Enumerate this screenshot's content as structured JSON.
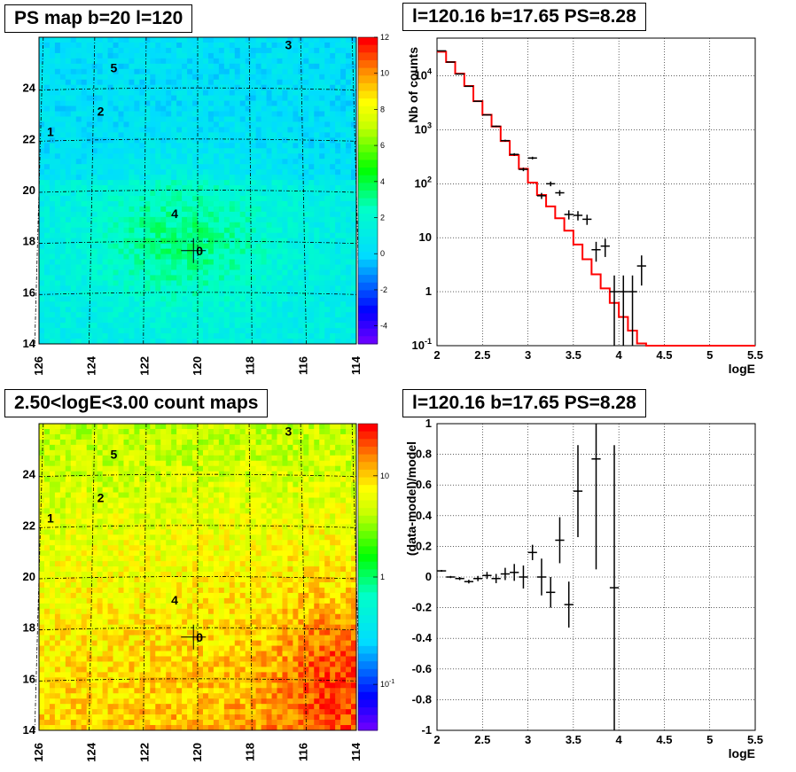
{
  "panels": {
    "ps_map": {
      "title": "PS map b=20 l=120",
      "x_ticks": [
        "126",
        "124",
        "122",
        "120",
        "118",
        "116",
        "114"
      ],
      "y_ticks": [
        "14",
        "16",
        "18",
        "20",
        "22",
        "24"
      ],
      "colorbar_ticks": [
        "12",
        "10",
        "8",
        "6",
        "4",
        "2",
        "0",
        "-2",
        "-4"
      ],
      "colorbar_range": [
        -5,
        12
      ],
      "sources": [
        {
          "label": "0",
          "l": 120.16,
          "b": 17.65
        },
        {
          "label": "1",
          "l": 125.7,
          "b": 22.3
        },
        {
          "label": "2",
          "l": 123.8,
          "b": 23.1
        },
        {
          "label": "3",
          "l": 116.7,
          "b": 25.7
        },
        {
          "label": "4",
          "l": 121.0,
          "b": 19.1
        },
        {
          "label": "5",
          "l": 123.3,
          "b": 24.8
        }
      ]
    },
    "spectrum": {
      "title": "l=120.16 b=17.65 PS=8.28",
      "xlabel": "logE",
      "ylabel": "Nb of counts"
    },
    "count_map": {
      "title": "2.50<logE<3.00 count maps",
      "x_ticks": [
        "126",
        "124",
        "122",
        "120",
        "118",
        "116",
        "114"
      ],
      "y_ticks": [
        "14",
        "16",
        "18",
        "20",
        "22",
        "24"
      ],
      "colorbar_ticks": [
        "10",
        "1",
        "10"
      ],
      "colorbar_tick_sup": [
        "",
        "",
        "-1"
      ],
      "sources": [
        {
          "label": "0",
          "l": 120.16,
          "b": 17.65
        },
        {
          "label": "1",
          "l": 125.7,
          "b": 22.3
        },
        {
          "label": "2",
          "l": 123.8,
          "b": 23.1
        },
        {
          "label": "3",
          "l": 116.7,
          "b": 25.7
        },
        {
          "label": "4",
          "l": 121.0,
          "b": 19.1
        },
        {
          "label": "5",
          "l": 123.3,
          "b": 24.8
        }
      ]
    },
    "residual": {
      "title": "l=120.16 b=17.65 PS=8.28",
      "xlabel": "logE",
      "ylabel": "(data-model)/model"
    }
  },
  "chart_data": [
    {
      "type": "heatmap",
      "title": "PS map b=20 l=120",
      "xlim": [
        126,
        114
      ],
      "ylim": [
        14,
        26
      ],
      "x_ticks": [
        126,
        124,
        122,
        120,
        118,
        116,
        114
      ],
      "y_ticks": [
        14,
        16,
        18,
        20,
        22,
        24
      ],
      "zlim": [
        -5,
        12
      ],
      "colors": {
        "high": "#ff0000",
        "mid": "#00ffff",
        "low": "#8000ff"
      }
    },
    {
      "type": "line",
      "title": "l=120.16 b=17.65 PS=8.28",
      "xlabel": "logE",
      "ylabel": "Nb of counts",
      "xlim": [
        2,
        5.5
      ],
      "ylim": [
        0.1,
        50000
      ],
      "y_scale": "log",
      "x_ticks": [
        2,
        2.5,
        3,
        3.5,
        4,
        4.5,
        5,
        5.5
      ],
      "y_tick_labels": [
        "10^-1",
        "1",
        "10",
        "10^2",
        "10^3",
        "10^4"
      ],
      "grid": true,
      "series": [
        {
          "style": "step",
          "color": "#ff0000",
          "x": [
            2.0,
            2.1,
            2.2,
            2.3,
            2.4,
            2.5,
            2.6,
            2.7,
            2.8,
            2.9,
            3.0,
            3.1,
            3.2,
            3.3,
            3.4,
            3.5,
            3.6,
            3.7,
            3.8,
            3.9,
            4.0,
            4.1,
            4.2,
            4.3,
            4.4,
            5.5
          ],
          "y": [
            28000,
            18000,
            11000,
            6500,
            3400,
            1900,
            1150,
            620,
            340,
            190,
            105,
            62,
            38,
            23,
            13.5,
            7.5,
            4.0,
            2.1,
            1.15,
            0.62,
            0.34,
            0.19,
            0.11,
            0.1,
            0.1,
            0.1
          ]
        },
        {
          "style": "errorbar",
          "color": "#000000",
          "x": [
            2.05,
            2.15,
            2.25,
            2.35,
            2.45,
            2.55,
            2.65,
            2.75,
            2.85,
            2.95,
            3.05,
            3.15,
            3.25,
            3.35,
            3.45,
            3.55,
            3.65,
            3.75,
            3.85,
            3.95,
            4.05,
            4.15,
            4.25
          ],
          "y": [
            29000,
            18000,
            10800,
            6400,
            3380,
            1890,
            1160,
            630,
            350,
            185,
            300,
            60,
            100,
            68,
            27,
            26,
            22,
            6.0,
            7.0,
            1.0,
            1.0,
            1.0,
            3.0
          ],
          "yerr_low": [
            170,
            130,
            100,
            80,
            58,
            43,
            34,
            25,
            19,
            14,
            17,
            7.7,
            10,
            8.2,
            5.2,
            5.1,
            4.7,
            2.4,
            2.6,
            0.9,
            0.9,
            0.9,
            1.7
          ],
          "yerr_high": [
            170,
            130,
            100,
            80,
            58,
            43,
            34,
            25,
            19,
            14,
            17,
            7.7,
            10,
            8.2,
            5.2,
            5.1,
            4.7,
            2.4,
            2.6,
            1.0,
            1.0,
            1.0,
            1.7
          ]
        }
      ]
    },
    {
      "type": "heatmap",
      "title": "2.50<logE<3.00 count maps",
      "xlim": [
        126,
        114
      ],
      "ylim": [
        14,
        26
      ],
      "x_ticks": [
        126,
        124,
        122,
        120,
        118,
        116,
        114
      ],
      "y_ticks": [
        14,
        16,
        18,
        20,
        22,
        24
      ],
      "z_scale": "log",
      "zlim": [
        0.03,
        30
      ],
      "colors": {
        "high": "#ff0000",
        "mid": "#ffff00",
        "low": "#8000ff"
      }
    },
    {
      "type": "scatter",
      "title": "l=120.16 b=17.65 PS=8.28",
      "xlabel": "logE",
      "ylabel": "(data-model)/model",
      "xlim": [
        2,
        5.5
      ],
      "ylim": [
        -1,
        1
      ],
      "x_ticks": [
        2,
        2.5,
        3,
        3.5,
        4,
        4.5,
        5,
        5.5
      ],
      "y_ticks": [
        -1,
        -0.8,
        -0.6,
        -0.4,
        -0.2,
        0,
        0.2,
        0.4,
        0.6,
        0.8,
        1
      ],
      "grid": true,
      "series": [
        {
          "style": "errorbar",
          "color": "#000000",
          "x": [
            2.05,
            2.15,
            2.25,
            2.35,
            2.45,
            2.55,
            2.65,
            2.75,
            2.85,
            2.95,
            3.05,
            3.15,
            3.25,
            3.35,
            3.45,
            3.55,
            3.75,
            3.95
          ],
          "y": [
            0.04,
            0.0,
            -0.01,
            -0.03,
            -0.01,
            0.01,
            -0.01,
            0.02,
            0.03,
            0.0,
            0.16,
            0.0,
            -0.1,
            0.24,
            -0.18,
            0.56,
            0.77,
            -0.07
          ],
          "yerr": [
            0.006,
            0.007,
            0.01,
            0.012,
            0.017,
            0.023,
            0.03,
            0.04,
            0.055,
            0.075,
            0.05,
            0.12,
            0.1,
            0.15,
            0.15,
            0.3,
            0.72,
            0.93
          ]
        }
      ]
    }
  ]
}
